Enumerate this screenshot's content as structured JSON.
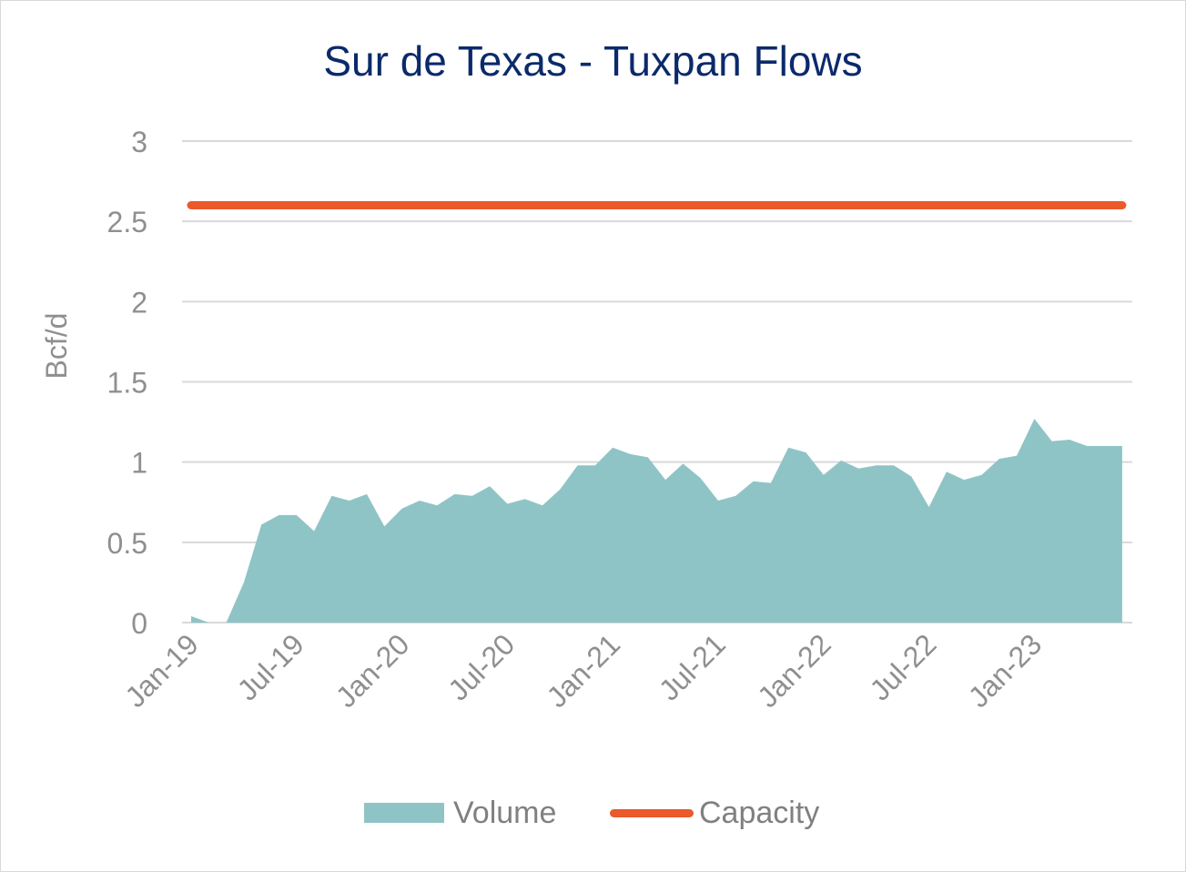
{
  "colors": {
    "volume": "#8fc4c6",
    "capacity": "#ea5a2a",
    "title": "#0b2a6b",
    "axis_text": "#8f8f8f",
    "grid": "#d9d9d9"
  },
  "chart_data": {
    "type": "area",
    "title": "Sur de Texas - Tuxpan Flows",
    "ylabel": "Bcf/d",
    "xlabel": "",
    "ylim": [
      0,
      3
    ],
    "y_ticks": [
      "0",
      "0.5",
      "1",
      "1.5",
      "2",
      "2.5",
      "3"
    ],
    "x_tick_labels": [
      "Jan-19",
      "Jul-19",
      "Jan-20",
      "Jul-20",
      "Jan-21",
      "Jul-21",
      "Jan-22",
      "Jul-22",
      "Jan-23"
    ],
    "grid": true,
    "legend_position": "bottom",
    "x": [
      "2019-01",
      "2019-02",
      "2019-03",
      "2019-04",
      "2019-05",
      "2019-06",
      "2019-07",
      "2019-08",
      "2019-09",
      "2019-10",
      "2019-11",
      "2019-12",
      "2020-01",
      "2020-02",
      "2020-03",
      "2020-04",
      "2020-05",
      "2020-06",
      "2020-07",
      "2020-08",
      "2020-09",
      "2020-10",
      "2020-11",
      "2020-12",
      "2021-01",
      "2021-02",
      "2021-03",
      "2021-04",
      "2021-05",
      "2021-06",
      "2021-07",
      "2021-08",
      "2021-09",
      "2021-10",
      "2021-11",
      "2021-12",
      "2022-01",
      "2022-02",
      "2022-03",
      "2022-04",
      "2022-05",
      "2022-06",
      "2022-07",
      "2022-08",
      "2022-09",
      "2022-10",
      "2022-11",
      "2022-12",
      "2023-01",
      "2023-02",
      "2023-03",
      "2023-04",
      "2023-05",
      "2023-06"
    ],
    "series": [
      {
        "name": "Volume",
        "type": "area",
        "values": [
          0.04,
          0.0,
          0.0,
          0.25,
          0.61,
          0.67,
          0.67,
          0.57,
          0.79,
          0.76,
          0.8,
          0.6,
          0.71,
          0.76,
          0.73,
          0.8,
          0.79,
          0.85,
          0.74,
          0.77,
          0.73,
          0.83,
          0.98,
          0.98,
          1.09,
          1.05,
          1.03,
          0.89,
          0.99,
          0.9,
          0.76,
          0.79,
          0.88,
          0.87,
          1.09,
          1.06,
          0.92,
          1.01,
          0.96,
          0.98,
          0.98,
          0.91,
          0.72,
          0.94,
          0.89,
          0.92,
          1.02,
          1.04,
          1.27,
          1.13,
          1.14,
          1.1,
          1.1,
          1.1
        ]
      },
      {
        "name": "Capacity",
        "type": "line",
        "values": [
          2.6,
          2.6,
          2.6,
          2.6,
          2.6,
          2.6,
          2.6,
          2.6,
          2.6,
          2.6,
          2.6,
          2.6,
          2.6,
          2.6,
          2.6,
          2.6,
          2.6,
          2.6,
          2.6,
          2.6,
          2.6,
          2.6,
          2.6,
          2.6,
          2.6,
          2.6,
          2.6,
          2.6,
          2.6,
          2.6,
          2.6,
          2.6,
          2.6,
          2.6,
          2.6,
          2.6,
          2.6,
          2.6,
          2.6,
          2.6,
          2.6,
          2.6,
          2.6,
          2.6,
          2.6,
          2.6,
          2.6,
          2.6,
          2.6,
          2.6,
          2.6,
          2.6,
          2.6,
          2.6
        ]
      }
    ]
  },
  "legend": {
    "volume_label": "Volume",
    "capacity_label": "Capacity"
  }
}
